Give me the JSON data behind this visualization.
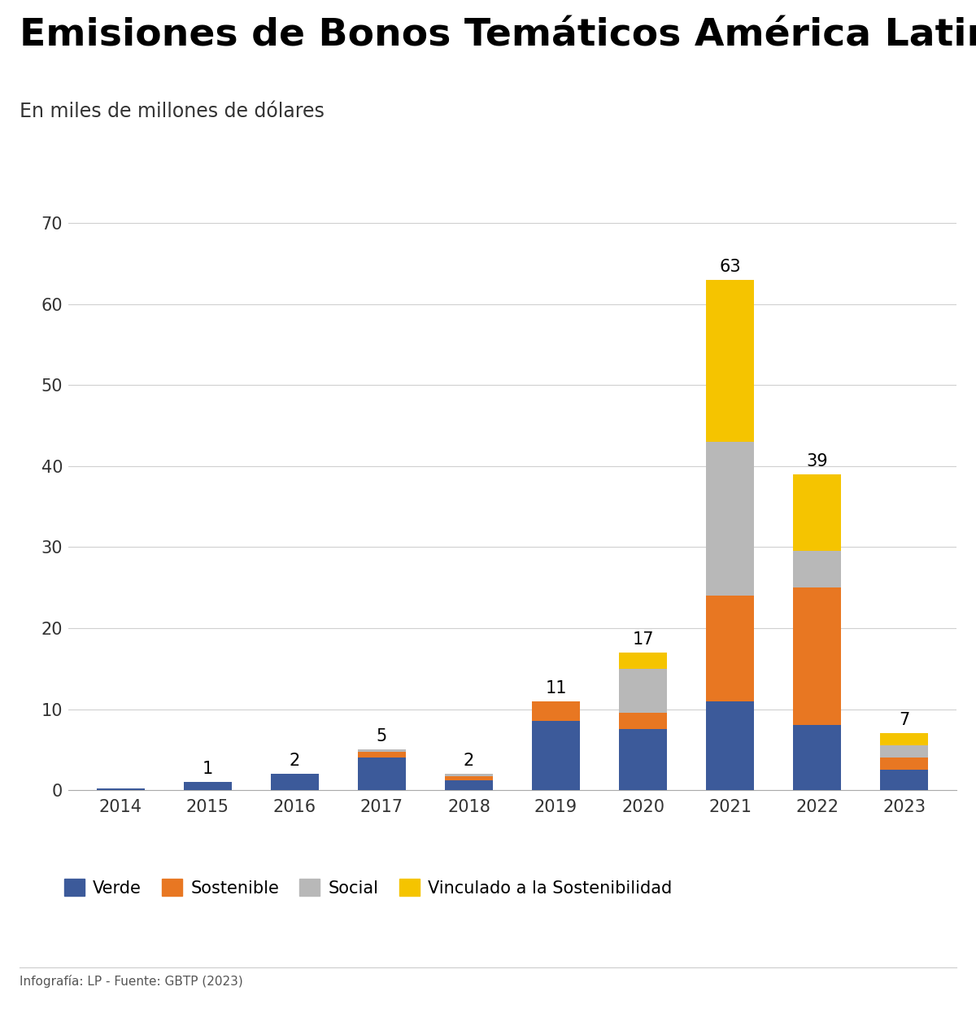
{
  "title": "Emisiones de Bonos Temáticos América Latina y el Caribe",
  "subtitle": "En miles de millones de dólares",
  "years": [
    "2014",
    "2015",
    "2016",
    "2017",
    "2018",
    "2019",
    "2020",
    "2021",
    "2022",
    "2023"
  ],
  "verde": [
    0.2,
    1.0,
    2.0,
    4.0,
    1.2,
    8.5,
    7.5,
    11.0,
    8.0,
    2.5
  ],
  "sostenible": [
    0.0,
    0.0,
    0.0,
    0.7,
    0.5,
    2.5,
    2.0,
    13.0,
    17.0,
    1.5
  ],
  "social": [
    0.0,
    0.0,
    0.0,
    0.3,
    0.3,
    0.0,
    5.5,
    19.0,
    4.5,
    1.5
  ],
  "vinculado": [
    0.0,
    0.0,
    0.0,
    0.0,
    0.0,
    0.0,
    2.0,
    20.0,
    9.5,
    1.5
  ],
  "totals": [
    0,
    1,
    2,
    5,
    2,
    11,
    17,
    63,
    39,
    7
  ],
  "color_verde": "#3c5a9a",
  "color_sostenible": "#e87722",
  "color_social": "#b8b8b8",
  "color_vinculado": "#f5c400",
  "ylim": [
    0,
    75
  ],
  "yticks": [
    0,
    10,
    20,
    30,
    40,
    50,
    60,
    70
  ],
  "footer": "Infografía: LP - Fuente: GBTP (2023)",
  "legend_labels": [
    "Verde",
    "Sostenible",
    "Social",
    "Vinculado a la Sostenibilidad"
  ]
}
